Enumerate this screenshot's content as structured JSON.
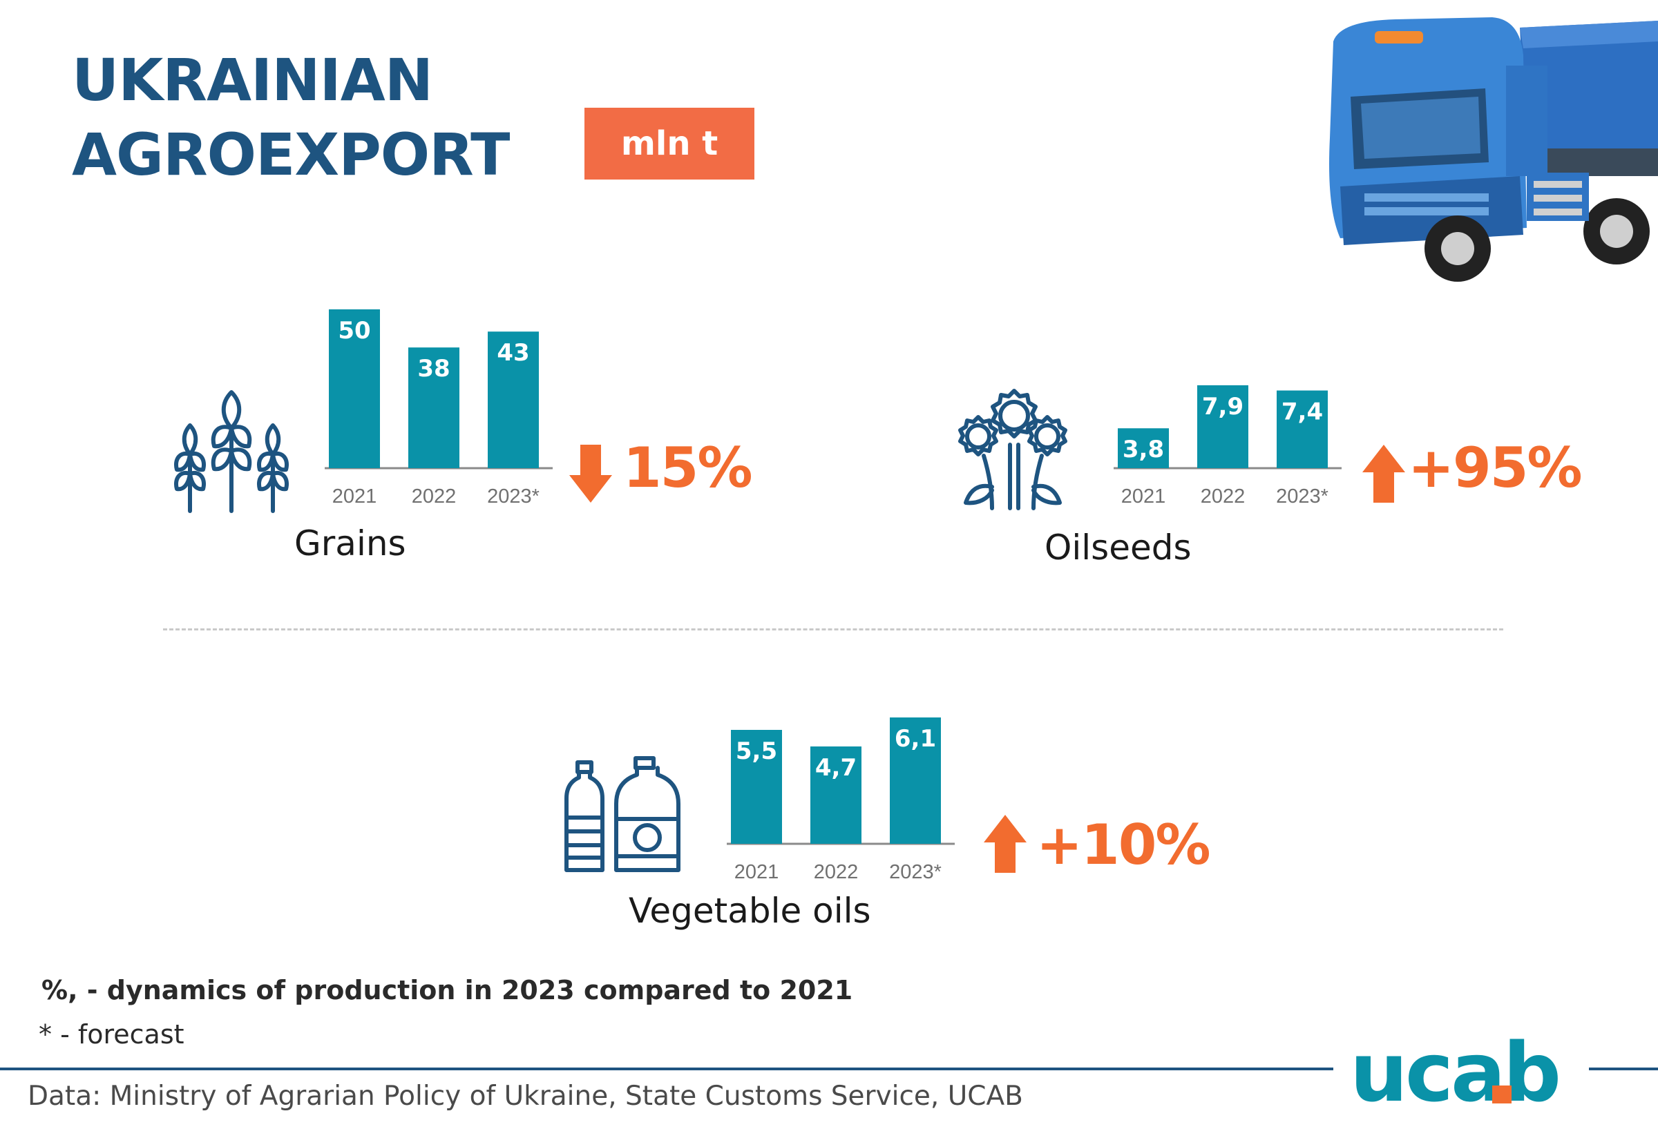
{
  "header": {
    "title_line1": "UKRAINIAN",
    "title_line2": "AGROEXPORT",
    "unit": "mln t"
  },
  "colors": {
    "title": "#1e5480",
    "bar": "#0a92a8",
    "accent_orange": "#f26c2f",
    "badge": "#f26c45",
    "logo_teal": "#0a92a8",
    "logo_orange": "#f26c2f"
  },
  "chart_data": [
    {
      "type": "bar",
      "title": "Grains",
      "categories": [
        "2021",
        "2022",
        "2023*"
      ],
      "values": [
        50,
        38,
        43
      ],
      "value_labels": [
        "50",
        "38",
        "43"
      ],
      "change": "15%",
      "change_direction": "down",
      "icon": "wheat-icon"
    },
    {
      "type": "bar",
      "title": "Oilseeds",
      "categories": [
        "2021",
        "2022",
        "2023*"
      ],
      "values": [
        3.8,
        7.9,
        7.4
      ],
      "value_labels": [
        "3,8",
        "7,9",
        "7,4"
      ],
      "change": "+95%",
      "change_direction": "up",
      "icon": "sunflower-icon"
    },
    {
      "type": "bar",
      "title": "Vegetable oils",
      "categories": [
        "2021",
        "2022",
        "2023*"
      ],
      "values": [
        5.5,
        4.7,
        6.1
      ],
      "value_labels": [
        "5,5",
        "4,7",
        "6,1"
      ],
      "change": "+10%",
      "change_direction": "up",
      "icon": "oil-bottles-icon"
    }
  ],
  "notes": {
    "dynamics": "%, - dynamics of production in 2023 compared to 2021",
    "forecast": "* - forecast"
  },
  "footer": {
    "source": "Data: Ministry of Agrarian Policy of Ukraine, State Customs Service, UCAB",
    "logo_text": "ucab"
  }
}
